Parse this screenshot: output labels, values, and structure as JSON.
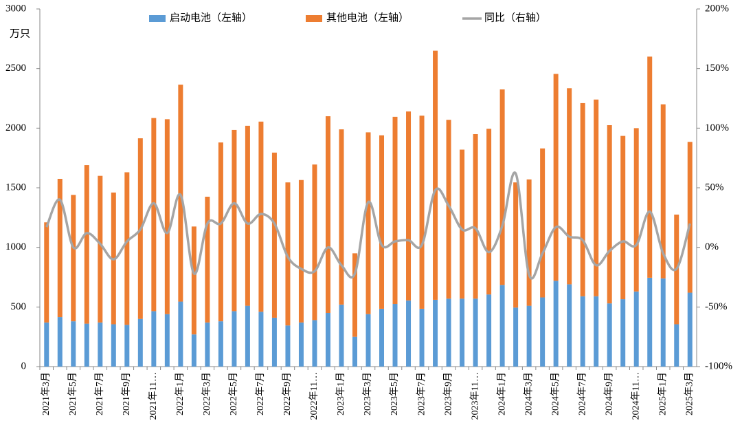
{
  "chart_data": {
    "type": "bar",
    "unit_label": "万只",
    "categories": [
      "2021年3月",
      null,
      "2021年5月",
      null,
      "2021年7月",
      null,
      "2021年9月",
      null,
      "2021年11…",
      null,
      "2022年1月",
      null,
      "2022年3月",
      null,
      "2022年5月",
      null,
      "2022年7月",
      null,
      "2022年9月",
      null,
      "2022年11…",
      null,
      "2023年1月",
      null,
      "2023年3月",
      null,
      "2023年5月",
      null,
      "2023年7月",
      null,
      "2023年9月",
      null,
      "2023年11…",
      null,
      "2024年1月",
      null,
      "2024年3月",
      null,
      "2024年5月",
      null,
      "2024年7月",
      null,
      "2024年9月",
      null,
      "2024年11…",
      null,
      "2025年1月",
      null,
      "2025年3月"
    ],
    "series": [
      {
        "name": "启动电池（左轴）",
        "color": "#5b9bd5",
        "values": [
          370,
          415,
          380,
          360,
          370,
          355,
          350,
          400,
          465,
          440,
          545,
          270,
          370,
          380,
          465,
          510,
          460,
          410,
          345,
          370,
          390,
          450,
          520,
          250,
          440,
          485,
          525,
          555,
          485,
          560,
          570,
          570,
          570,
          605,
          685,
          495,
          510,
          580,
          720,
          690,
          590,
          590,
          530,
          565,
          630,
          745,
          740,
          355,
          620
        ]
      },
      {
        "name": "其他电池（左轴）",
        "color": "#ed7d31",
        "values": [
          840,
          1160,
          1060,
          1330,
          1230,
          1105,
          1280,
          1515,
          1620,
          1635,
          1820,
          905,
          1055,
          1500,
          1520,
          1510,
          1595,
          1385,
          1200,
          1195,
          1305,
          1650,
          1470,
          700,
          1525,
          1455,
          1570,
          1585,
          1620,
          2090,
          1500,
          1250,
          1380,
          1390,
          1640,
          1050,
          1060,
          1250,
          1735,
          1645,
          1620,
          1650,
          1495,
          1370,
          1370,
          1855,
          1460,
          920,
          1265
        ]
      },
      {
        "name": "同比（右轴）",
        "color": "#a5a5a5",
        "type": "line",
        "axis": "y2",
        "values": [
          17,
          40,
          0,
          12,
          3,
          -10,
          5,
          15,
          37,
          12,
          44,
          -22,
          20,
          20,
          37,
          20,
          28,
          20,
          -8,
          -18,
          -20,
          0,
          -15,
          -22,
          38,
          2,
          5,
          6,
          2,
          48,
          35,
          15,
          16,
          -4,
          18,
          62,
          -23,
          -5,
          17,
          9,
          6,
          -15,
          -3,
          5,
          2,
          30,
          -5,
          -18,
          20
        ]
      }
    ],
    "stacked": true,
    "ylim": [
      0,
      3000
    ],
    "yticks": [
      0,
      500,
      1000,
      1500,
      2000,
      2500,
      3000
    ],
    "y2lim": [
      -100,
      200
    ],
    "y2ticks": [
      {
        "value": -100,
        "label": "-100%"
      },
      {
        "value": -50,
        "label": "-50%"
      },
      {
        "value": 0,
        "label": "0%"
      },
      {
        "value": 50,
        "label": "50%"
      },
      {
        "value": 100,
        "label": "100%"
      },
      {
        "value": 150,
        "label": "150%"
      },
      {
        "value": 200,
        "label": "200%"
      }
    ],
    "legend": "top"
  }
}
